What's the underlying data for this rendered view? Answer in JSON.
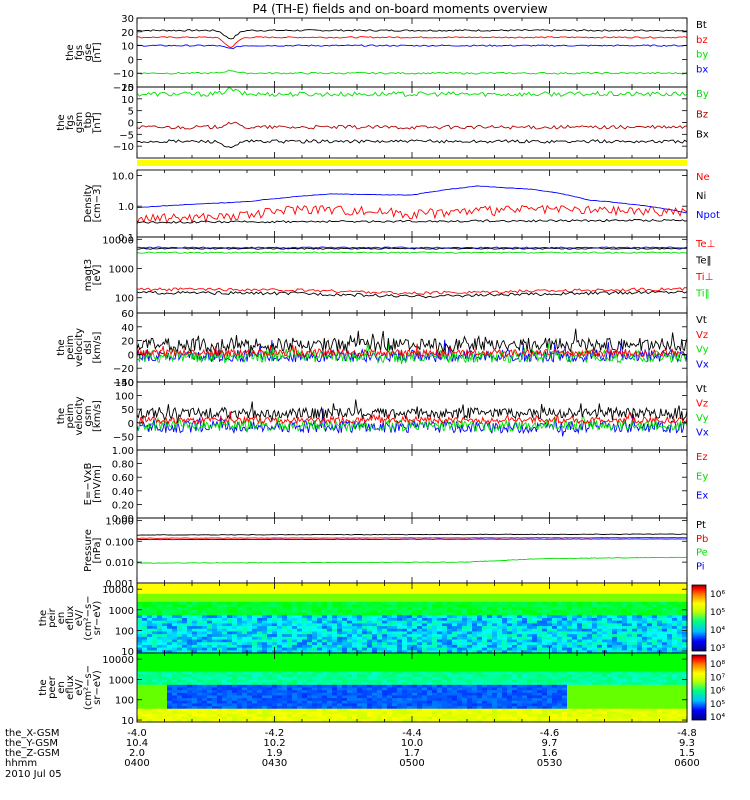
{
  "figure": {
    "title": "P4 (TH-E) fields and on-board moments overview",
    "footer_rows": [
      {
        "label": "the_X-GSM",
        "values": [
          "-4.0",
          "-4.2",
          "-4.4",
          "-4.6",
          "-4.8"
        ]
      },
      {
        "label": "the_Y-GSM",
        "values": [
          "10.4",
          "10.2",
          "10.0",
          "9.7",
          "9.3"
        ]
      },
      {
        "label": "the_Z-GSM",
        "values": [
          "2.0",
          "1.9",
          "1.7",
          "1.6",
          "1.5"
        ]
      },
      {
        "label": "hhmm",
        "values": [
          "0400",
          "0430",
          "0500",
          "0530",
          "0600"
        ]
      }
    ],
    "date": "2010 Jul 05"
  },
  "colors": {
    "black": "#000000",
    "red": "#ff0000",
    "darkred": "#b00000",
    "green": "#00e000",
    "blue": "#0000ff",
    "yellow": "#ffff00"
  },
  "chart_data": [
    {
      "id": "p1",
      "type": "line",
      "ylabel": [
        "the",
        "fgs",
        "gse",
        "[nT]"
      ],
      "ylim": [
        -20,
        30
      ],
      "yticks": [
        {
          "v": 30,
          "t": "30"
        },
        {
          "v": 20,
          "t": "20"
        },
        {
          "v": 10,
          "t": "10"
        },
        {
          "v": 0,
          "t": "0"
        },
        {
          "v": -10,
          "t": "−10"
        },
        {
          "v": -20,
          "t": "−20"
        }
      ],
      "legend": [
        {
          "label": "Bt",
          "color": "#000000"
        },
        {
          "label": "bz",
          "color": "#ff0000"
        },
        {
          "label": "by",
          "color": "#00e000"
        },
        {
          "label": "bx",
          "color": "#0000ff"
        }
      ],
      "series": [
        {
          "name": "Bt",
          "color": "#000000",
          "base": 21,
          "noise": 0.6,
          "dip": -6
        },
        {
          "name": "bz",
          "color": "#ff0000",
          "base": 16,
          "noise": 0.5,
          "dip": -7
        },
        {
          "name": "bx",
          "color": "#0000ff",
          "base": 10,
          "noise": 0.5,
          "dip": -2
        },
        {
          "name": "by",
          "color": "#00e000",
          "base": -10,
          "noise": 0.6,
          "dip": 2
        }
      ]
    },
    {
      "id": "p2",
      "type": "line",
      "ylabel": [
        "the",
        "fgs",
        "gsm",
        "_tbp",
        "[nT]"
      ],
      "ylim": [
        -15,
        15
      ],
      "yticks": [
        {
          "v": 15,
          "t": "15"
        },
        {
          "v": 10,
          "t": "10"
        },
        {
          "v": 5,
          "t": "5"
        },
        {
          "v": 0,
          "t": "0"
        },
        {
          "v": -5,
          "t": "−5"
        },
        {
          "v": -10,
          "t": "−10"
        }
      ],
      "legend": [
        {
          "label": "By",
          "color": "#00e000"
        },
        {
          "label": "Bz",
          "color": "#b00000"
        },
        {
          "label": "Bx",
          "color": "#000000"
        }
      ],
      "series": [
        {
          "name": "By",
          "color": "#00e000",
          "base": 12,
          "noise": 1.0,
          "dip": 2
        },
        {
          "name": "Bz",
          "color": "#b00000",
          "base": -2,
          "noise": 0.8,
          "dip": 2
        },
        {
          "name": "Bx",
          "color": "#000000",
          "base": -8,
          "noise": 0.7,
          "dip": -3
        }
      ]
    },
    {
      "id": "p3",
      "type": "line",
      "ylabel": [
        "Density",
        "[cm−3]"
      ],
      "log": true,
      "ylim": [
        0.1,
        15
      ],
      "yticks": [
        {
          "v": 10,
          "t": "10.0"
        },
        {
          "v": 1,
          "t": "1.0"
        },
        {
          "v": 0.1,
          "t": "0.1"
        }
      ],
      "legend": [
        {
          "label": "Ne",
          "color": "#ff0000"
        },
        {
          "label": "Ni",
          "color": "#000000"
        },
        {
          "label": "Npot",
          "color": "#0000ff"
        }
      ],
      "series": [
        {
          "name": "Npot",
          "color": "#0000ff",
          "profile": [
            [
              0,
              0.9
            ],
            [
              0.2,
              1.4
            ],
            [
              0.35,
              2.5
            ],
            [
              0.5,
              2.3
            ],
            [
              0.62,
              4.5
            ],
            [
              0.72,
              3.5
            ],
            [
              0.82,
              1.6
            ],
            [
              1,
              0.6
            ]
          ],
          "noise": 0.02
        },
        {
          "name": "Ne",
          "color": "#ff0000",
          "profile": [
            [
              0,
              0.4
            ],
            [
              0.2,
              0.5
            ],
            [
              0.3,
              0.9
            ],
            [
              0.5,
              0.6
            ],
            [
              0.7,
              0.8
            ],
            [
              1,
              0.7
            ]
          ],
          "noise": 0.35
        },
        {
          "name": "Ni",
          "color": "#000000",
          "profile": [
            [
              0,
              0.3
            ],
            [
              1,
              0.35
            ]
          ],
          "noise": 0.08
        }
      ]
    },
    {
      "id": "p4",
      "type": "line",
      "ylabel": [
        "magt3",
        "[eV]"
      ],
      "log": true,
      "ylim": [
        30,
        12000
      ],
      "yticks": [
        {
          "v": 10000,
          "t": "10000"
        },
        {
          "v": 1000,
          "t": "1000"
        },
        {
          "v": 100,
          "t": "100"
        }
      ],
      "legend": [
        {
          "label": "Te⊥",
          "color": "#ff0000"
        },
        {
          "label": "Te‖",
          "color": "#000000"
        },
        {
          "label": "Ti⊥",
          "color": "#ff0000"
        },
        {
          "label": "Ti‖",
          "color": "#00e000"
        }
      ],
      "series": [
        {
          "name": "Te∥",
          "color": "#000000",
          "profile": [
            [
              0,
              4800
            ],
            [
              1,
              4800
            ]
          ],
          "noise": 0.05
        },
        {
          "name": "Ti⊥",
          "color": "#0000ff",
          "profile": [
            [
              0,
              5200
            ],
            [
              1,
              5200
            ]
          ],
          "noise": 0.05
        },
        {
          "name": "Ti∥",
          "color": "#00e000",
          "profile": [
            [
              0,
              3500
            ],
            [
              1,
              3500
            ]
          ],
          "noise": 0.05
        },
        {
          "name": "Te⊥",
          "color": "#ff0000",
          "profile": [
            [
              0,
              200
            ],
            [
              0.3,
              180
            ],
            [
              0.5,
              140
            ],
            [
              0.7,
              170
            ],
            [
              1,
              200
            ]
          ],
          "noise": 0.12
        },
        {
          "name": "Te∥",
          "color": "#000000",
          "profile": [
            [
              0,
              150
            ],
            [
              0.3,
              140
            ],
            [
              0.5,
              110
            ],
            [
              0.7,
              130
            ],
            [
              1,
              160
            ]
          ],
          "noise": 0.12
        }
      ]
    },
    {
      "id": "p5",
      "type": "line",
      "ylabel": [
        "the",
        "peim",
        "velocity",
        "dsl",
        "[km/s]"
      ],
      "ylim": [
        -40,
        60
      ],
      "yticks": [
        {
          "v": 60,
          "t": "60"
        },
        {
          "v": 40,
          "t": "40"
        },
        {
          "v": 20,
          "t": "20"
        },
        {
          "v": 0,
          "t": "0"
        },
        {
          "v": -20,
          "t": "−20"
        },
        {
          "v": -40,
          "t": "−40"
        }
      ],
      "legend": [
        {
          "label": "Vt",
          "color": "#000000"
        },
        {
          "label": "Vz",
          "color": "#ff0000"
        },
        {
          "label": "Vy",
          "color": "#00e000"
        },
        {
          "label": "Vx",
          "color": "#0000ff"
        }
      ],
      "series": [
        {
          "name": "Vx",
          "color": "#0000ff",
          "base": -2,
          "noise": 9,
          "spiky": true
        },
        {
          "name": "Vy",
          "color": "#00e000",
          "base": -3,
          "noise": 9,
          "spiky": true
        },
        {
          "name": "Vt",
          "color": "#000000",
          "base": 14,
          "noise": 10,
          "spiky": true
        },
        {
          "name": "Vz",
          "color": "#ff0000",
          "base": 2,
          "noise": 5,
          "spiky": true
        }
      ]
    },
    {
      "id": "p6",
      "type": "line",
      "ylabel": [
        "the",
        "peim",
        "velocity",
        "gsm",
        "[km/s]"
      ],
      "ylim": [
        -100,
        150
      ],
      "yticks": [
        {
          "v": 150,
          "t": "150"
        },
        {
          "v": 100,
          "t": "100"
        },
        {
          "v": 50,
          "t": "50"
        },
        {
          "v": 0,
          "t": "0"
        },
        {
          "v": -50,
          "t": "−50"
        }
      ],
      "legend": [
        {
          "label": "Vt",
          "color": "#000000"
        },
        {
          "label": "Vz",
          "color": "#ff0000"
        },
        {
          "label": "Vy",
          "color": "#00e000"
        },
        {
          "label": "Vx",
          "color": "#0000ff"
        }
      ],
      "series": [
        {
          "name": "Vx",
          "color": "#0000ff",
          "base": -15,
          "noise": 22,
          "spiky": true
        },
        {
          "name": "Vy",
          "color": "#00e000",
          "base": -10,
          "noise": 20,
          "spiky": true
        },
        {
          "name": "Vt",
          "color": "#000000",
          "base": 35,
          "noise": 20,
          "spiky": true
        },
        {
          "name": "Vz",
          "color": "#ff0000",
          "base": 10,
          "noise": 12,
          "spiky": true
        }
      ]
    },
    {
      "id": "p7",
      "type": "line",
      "ylabel": [
        "E=−VxB",
        "[mV/m]"
      ],
      "ylim": [
        0,
        1
      ],
      "yticks": [
        {
          "v": 1,
          "t": "1.00"
        },
        {
          "v": 0.8,
          "t": "0.80"
        },
        {
          "v": 0.6,
          "t": "0.60"
        },
        {
          "v": 0.4,
          "t": "0.40"
        },
        {
          "v": 0.2,
          "t": "0.20"
        },
        {
          "v": 0,
          "t": "0.00"
        }
      ],
      "legend": [
        {
          "label": "Ez",
          "color": "#ff0000"
        },
        {
          "label": "Ey",
          "color": "#00e000"
        },
        {
          "label": "Ex",
          "color": "#0000ff"
        }
      ],
      "series": []
    },
    {
      "id": "p8",
      "type": "line",
      "ylabel": [
        "Pressure",
        "[nPa]"
      ],
      "log": true,
      "ylim": [
        0.001,
        1.3
      ],
      "yticks": [
        {
          "v": 1,
          "t": "1.000"
        },
        {
          "v": 0.1,
          "t": "0.100"
        },
        {
          "v": 0.01,
          "t": "0.010"
        },
        {
          "v": 0.001,
          "t": "0.001"
        }
      ],
      "legend": [
        {
          "label": "Pt",
          "color": "#000000"
        },
        {
          "label": "Pb",
          "color": "#ff0000"
        },
        {
          "label": "Pe",
          "color": "#00e000"
        },
        {
          "label": "Pi",
          "color": "#0000ff"
        }
      ],
      "series": [
        {
          "name": "Pt",
          "color": "#000000",
          "profile": [
            [
              0,
              0.2
            ],
            [
              1,
              0.22
            ]
          ],
          "noise": 0.03
        },
        {
          "name": "Pb",
          "color": "#ff0000",
          "profile": [
            [
              0,
              0.14
            ],
            [
              1,
              0.15
            ]
          ],
          "noise": 0.02
        },
        {
          "name": "Pi",
          "color": "#0000ff",
          "profile": [
            [
              0,
              0.12
            ],
            [
              1,
              0.13
            ]
          ],
          "noise": 0.02
        },
        {
          "name": "Pe",
          "color": "#00e000",
          "profile": [
            [
              0,
              0.009
            ],
            [
              0.6,
              0.01
            ],
            [
              0.75,
              0.015
            ],
            [
              1,
              0.017
            ]
          ],
          "noise": 0.03
        }
      ]
    },
    {
      "id": "p9",
      "type": "heatmap",
      "ylabel": [
        "the",
        "peir",
        "en",
        "eflux",
        "eV/",
        "(cm²−s−",
        "sr−eV)"
      ],
      "log": true,
      "ylim": [
        8,
        20000
      ],
      "yticks": [
        {
          "v": 10000,
          "t": "10000"
        },
        {
          "v": 1000,
          "t": "1000"
        },
        {
          "v": 100,
          "t": "100"
        },
        {
          "v": 10,
          "t": "10"
        }
      ],
      "colorbar": {
        "labels": [
          "10⁶",
          "10⁵",
          "10⁴",
          "10³"
        ]
      }
    },
    {
      "id": "p10",
      "type": "heatmap",
      "ylabel": [
        "the",
        "peer",
        "en",
        "eflux",
        "eV/",
        "(cm²−s−",
        "sr−eV)"
      ],
      "log": true,
      "ylim": [
        8,
        20000
      ],
      "yticks": [
        {
          "v": 10000,
          "t": "10000"
        },
        {
          "v": 1000,
          "t": "1000"
        },
        {
          "v": 100,
          "t": "100"
        },
        {
          "v": 10,
          "t": "10"
        }
      ],
      "colorbar": {
        "labels": [
          "10⁸",
          "10⁷",
          "10⁶",
          "10⁵",
          "10⁴"
        ]
      }
    }
  ]
}
